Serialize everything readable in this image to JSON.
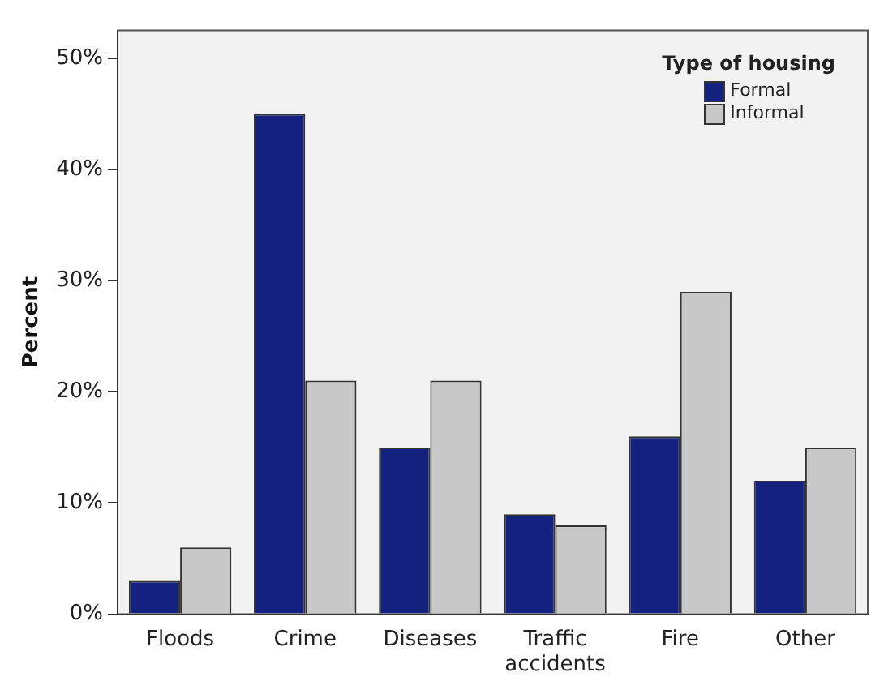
{
  "chart_data": {
    "type": "bar",
    "ylabel": "Percent",
    "legend_title": "Type of housing",
    "categories": [
      "Floods",
      "Crime",
      "Diseases",
      "Traffic accidents",
      "Fire",
      "Other"
    ],
    "series": [
      {
        "name": "Formal",
        "color": "#14217f",
        "values": [
          3,
          45,
          15,
          9,
          16,
          12
        ]
      },
      {
        "name": "Informal",
        "color": "#c8c8c8",
        "values": [
          6,
          21,
          21,
          8,
          29,
          15
        ]
      }
    ],
    "ylim": [
      0,
      52.5
    ],
    "yticks": [
      {
        "value": 0,
        "label": "0%"
      },
      {
        "value": 10,
        "label": "10%"
      },
      {
        "value": 20,
        "label": "20%"
      },
      {
        "value": 30,
        "label": "30%"
      },
      {
        "value": 40,
        "label": "40%"
      },
      {
        "value": 50,
        "label": "50%"
      }
    ],
    "grid": false,
    "legend": "top right"
  }
}
